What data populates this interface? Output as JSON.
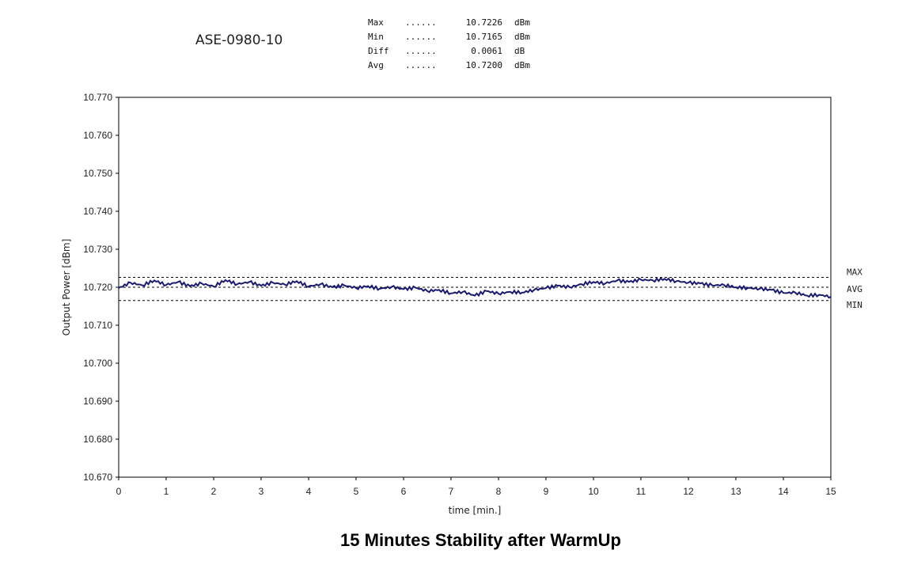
{
  "device": "ASE-0980-10",
  "stats": [
    {
      "label": "Max",
      "dots": "......",
      "value": "10.7226",
      "unit": "dBm"
    },
    {
      "label": "Min",
      "dots": "......",
      "value": "10.7165",
      "unit": "dBm"
    },
    {
      "label": "Diff",
      "dots": "......",
      "value": "0.0061",
      "unit": "dB"
    },
    {
      "label": "Avg",
      "dots": "......",
      "value": "10.7200",
      "unit": "dBm"
    }
  ],
  "chart_data": {
    "type": "line",
    "title": "15 Minutes Stability after WarmUp",
    "xlabel": "time [min.]",
    "ylabel": "Output Power [dBm]",
    "xlim": [
      0,
      15
    ],
    "ylim": [
      10.67,
      10.77
    ],
    "xticks": [
      "0",
      "1",
      "2",
      "3",
      "4",
      "5",
      "6",
      "7",
      "8",
      "9",
      "10",
      "11",
      "12",
      "13",
      "14",
      "15"
    ],
    "yticks": [
      "10.670",
      "10.680",
      "10.690",
      "10.700",
      "10.710",
      "10.720",
      "10.730",
      "10.740",
      "10.750",
      "10.760",
      "10.770"
    ],
    "ref_lines": [
      {
        "name": "MAX",
        "value": 10.7226
      },
      {
        "name": "AVG",
        "value": 10.72
      },
      {
        "name": "MIN",
        "value": 10.7165
      }
    ],
    "series": [
      {
        "name": "Output Power",
        "color": "#1a1a6e",
        "x": [
          0,
          0.25,
          0.5,
          0.75,
          1,
          1.25,
          1.5,
          1.75,
          2,
          2.25,
          2.5,
          2.75,
          3,
          3.25,
          3.5,
          3.75,
          4,
          4.25,
          4.5,
          4.75,
          5,
          5.25,
          5.5,
          5.75,
          6,
          6.25,
          6.5,
          6.75,
          7,
          7.25,
          7.5,
          7.75,
          8,
          8.25,
          8.5,
          8.75,
          9,
          9.25,
          9.5,
          9.75,
          10,
          10.25,
          10.5,
          10.75,
          11,
          11.25,
          11.5,
          11.75,
          12,
          12.25,
          12.5,
          12.75,
          13,
          13.25,
          13.5,
          13.75,
          14,
          14.25,
          14.5,
          14.75,
          15
        ],
        "y": [
          10.7198,
          10.7212,
          10.7205,
          10.7218,
          10.7206,
          10.7214,
          10.7203,
          10.721,
          10.7202,
          10.7219,
          10.7208,
          10.7214,
          10.7204,
          10.7212,
          10.7207,
          10.7216,
          10.7202,
          10.7208,
          10.72,
          10.7205,
          10.7198,
          10.7203,
          10.7196,
          10.7201,
          10.7195,
          10.7199,
          10.719,
          10.7193,
          10.7184,
          10.7188,
          10.7178,
          10.719,
          10.7183,
          10.7188,
          10.7186,
          10.7193,
          10.7198,
          10.7204,
          10.72,
          10.7208,
          10.7214,
          10.721,
          10.7218,
          10.7214,
          10.722,
          10.7218,
          10.7222,
          10.7216,
          10.7212,
          10.721,
          10.7205,
          10.7206,
          10.72,
          10.7198,
          10.7196,
          10.7193,
          10.7185,
          10.7186,
          10.7178,
          10.718,
          10.7175
        ]
      }
    ]
  }
}
